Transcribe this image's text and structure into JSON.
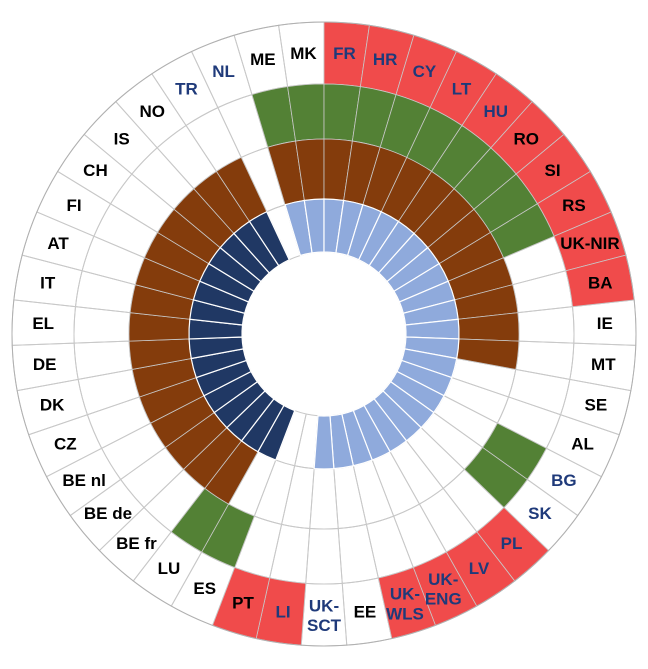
{
  "chart_data": {
    "type": "radial",
    "title": "",
    "countries": [
      "ME",
      "MK",
      "FR",
      "HR",
      "CY",
      "LT",
      "HU",
      "RO",
      "SI",
      "RS",
      "UK-NIR",
      "BA",
      "IE",
      "MT",
      "SE",
      "AL",
      "BG",
      "SK",
      "PL",
      "LV",
      "UK-ENG",
      "UK-WLS",
      "EE",
      "UK-SCT",
      "LI",
      "PT",
      "ES",
      "LU",
      "BE fr",
      "BE de",
      "BE nl",
      "CZ",
      "DK",
      "DE",
      "EL",
      "IT",
      "AT",
      "FI",
      "CH",
      "IS",
      "NO",
      "TR",
      "NL"
    ],
    "label_colors": [
      "dark",
      "dark",
      "navy",
      "navy",
      "navy",
      "navy",
      "navy",
      "dark",
      "dark",
      "dark",
      "dark",
      "dark",
      "dark",
      "dark",
      "dark",
      "dark",
      "navy",
      "navy",
      "navy",
      "navy",
      "navy",
      "navy",
      "dark",
      "navy",
      "navy",
      "dark",
      "dark",
      "dark",
      "dark",
      "dark",
      "dark",
      "dark",
      "dark",
      "dark",
      "dark",
      "dark",
      "dark",
      "dark",
      "dark",
      "dark",
      "dark",
      "navy",
      "navy"
    ],
    "series": [
      {
        "name": "",
        "values": [
          0,
          0,
          1,
          1,
          1,
          1,
          1,
          1,
          1,
          1,
          1,
          1,
          0,
          0,
          0,
          0,
          0,
          0,
          1,
          1,
          1,
          1,
          0,
          0,
          1,
          1,
          0,
          0,
          0,
          0,
          0,
          0,
          0,
          0,
          0,
          0,
          0,
          0,
          0,
          0,
          0,
          0,
          0
        ]
      },
      {
        "name": "",
        "values": [
          1,
          1,
          1,
          1,
          1,
          1,
          1,
          1,
          1,
          1,
          0,
          0,
          0,
          0,
          0,
          0,
          1,
          1,
          0,
          0,
          0,
          0,
          0,
          0,
          0,
          0,
          1,
          1,
          0,
          0,
          0,
          0,
          0,
          0,
          0,
          0,
          0,
          0,
          0,
          0,
          0,
          0,
          0
        ]
      },
      {
        "name": "",
        "values": [
          1,
          1,
          1,
          1,
          1,
          1,
          1,
          1,
          1,
          1,
          1,
          1,
          1,
          1,
          0,
          0,
          0,
          0,
          0,
          0,
          0,
          0,
          0,
          0,
          0,
          0,
          0,
          1,
          1,
          1,
          1,
          1,
          1,
          1,
          1,
          1,
          1,
          1,
          1,
          1,
          1,
          1,
          0
        ]
      },
      {
        "name": "",
        "values": [
          1,
          1,
          1,
          1,
          1,
          1,
          1,
          1,
          1,
          1,
          1,
          1,
          1,
          1,
          1,
          1,
          1,
          1,
          1,
          1,
          1,
          1,
          1,
          1,
          0,
          0,
          0,
          0,
          0,
          0,
          0,
          0,
          0,
          0,
          0,
          0,
          0,
          0,
          0,
          0,
          0,
          0,
          0
        ]
      },
      {
        "name": "",
        "values": [
          0,
          0,
          0,
          0,
          0,
          0,
          0,
          0,
          0,
          0,
          0,
          0,
          0,
          0,
          0,
          0,
          0,
          0,
          0,
          0,
          0,
          0,
          0,
          0,
          0,
          0,
          1,
          1,
          1,
          1,
          1,
          1,
          1,
          1,
          1,
          1,
          1,
          1,
          1,
          1,
          1,
          1,
          0
        ]
      }
    ],
    "colors": {
      "ring_red": "#f04b4b",
      "ring_green": "#538135",
      "ring_brown": "#843c0c",
      "ring_lightblue": "#8faadc",
      "ring_navy": "#203864",
      "grid": "#c8c8c8",
      "label_dark": "#000000",
      "label_navy": "#1f3a7a"
    }
  }
}
